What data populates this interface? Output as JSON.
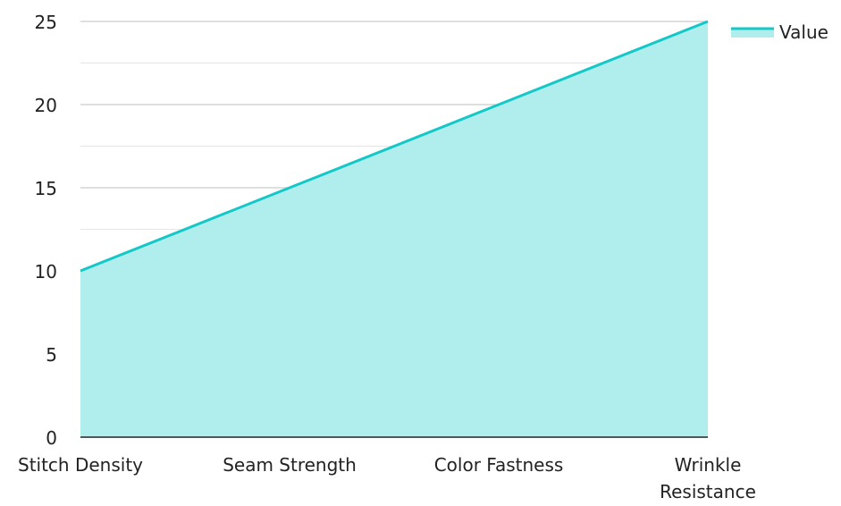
{
  "chart_data": {
    "type": "area",
    "categories": [
      "Stitch Density",
      "Seam Strength",
      "Color Fastness",
      "Wrinkle Resistance"
    ],
    "category_lines": [
      [
        "Stitch Density"
      ],
      [
        "Seam Strength"
      ],
      [
        "Color Fastness"
      ],
      [
        "Wrinkle",
        "Resistance"
      ]
    ],
    "series": [
      {
        "name": "Value",
        "values": [
          10,
          15,
          20,
          25
        ]
      }
    ],
    "ylim": [
      0,
      25
    ],
    "yticks": [
      0,
      5,
      10,
      15,
      20,
      25
    ],
    "grid": true,
    "legend": "top-right",
    "colors": {
      "line": "#14c8c8",
      "fill": "#b0eeee",
      "grid": "#cccccc",
      "axis": "#222222"
    }
  }
}
